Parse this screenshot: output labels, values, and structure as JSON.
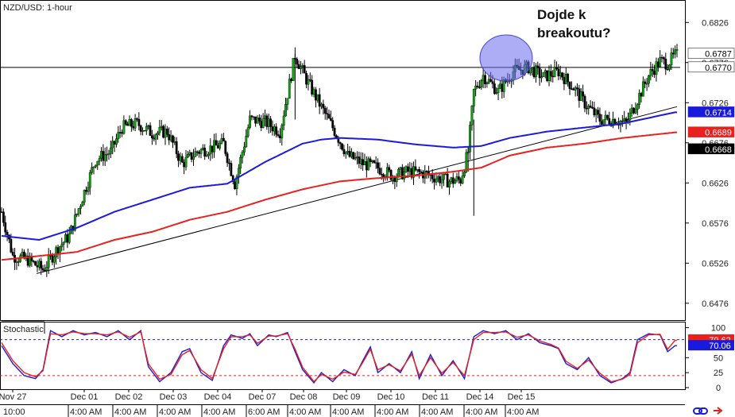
{
  "chart_data": [
    {
      "type": "candlestick",
      "title": "NZD/USD: 1-hour",
      "annotation_lines": [
        "Dojde k",
        "breakoutu?"
      ],
      "ylim": [
        0.6456,
        0.6852
      ],
      "y_ticks": [
        "0.6826",
        "0.6776",
        "0.6726",
        "0.6676",
        "0.6626",
        "0.6576",
        "0.6526",
        "0.6476"
      ],
      "price_tags": [
        {
          "label": "0.6787",
          "value": 0.6787,
          "bg": "#ffffff",
          "fg": "#000000"
        },
        {
          "label": "0.6770",
          "value": 0.677,
          "bg": "#ffffff",
          "fg": "#000000"
        },
        {
          "label": "0.6714",
          "value": 0.6714,
          "bg": "#1a1adc",
          "fg": "#ffffff"
        },
        {
          "label": "0.6689",
          "value": 0.6689,
          "bg": "#e8201e",
          "fg": "#ffffff"
        },
        {
          "label": "0.6668",
          "value": 0.6668,
          "bg": "#000000",
          "fg": "#ffffff"
        }
      ],
      "resistance_level": 0.677,
      "trendline": {
        "from": {
          "date": "Nov 27",
          "value": 0.6513
        },
        "to": {
          "date": "Dec 15+",
          "value": 0.6721
        }
      },
      "x_tick_labels": [
        {
          "date": "Nov 27",
          "time": "10:00"
        },
        {
          "date": "Dec 01",
          "time": "4:00 AM"
        },
        {
          "date": "Dec 02",
          "time": "4:00 AM"
        },
        {
          "date": "Dec 03",
          "time": "4:00 AM"
        },
        {
          "date": "Dec 04",
          "time": "4:00 AM"
        },
        {
          "date": "Dec 07",
          "time": "6:00 AM"
        },
        {
          "date": "Dec 08",
          "time": "4:00 AM"
        },
        {
          "date": "Dec 09",
          "time": "4:00 AM"
        },
        {
          "date": "Dec 10",
          "time": "4:00 AM"
        },
        {
          "date": "Dec 11",
          "time": "4:00 AM"
        },
        {
          "date": "Dec 14",
          "time": "4:00 AM"
        },
        {
          "date": "Dec 15",
          "time": "4:00 AM"
        }
      ],
      "price_path": [
        [
          0,
          0.659
        ],
        [
          6,
          0.6535
        ],
        [
          14,
          0.653
        ],
        [
          22,
          0.6518
        ],
        [
          30,
          0.6545
        ],
        [
          36,
          0.656
        ],
        [
          44,
          0.6615
        ],
        [
          50,
          0.6655
        ],
        [
          58,
          0.6665
        ],
        [
          64,
          0.6695
        ],
        [
          72,
          0.67
        ],
        [
          80,
          0.6688
        ],
        [
          88,
          0.669
        ],
        [
          96,
          0.665
        ],
        [
          104,
          0.6665
        ],
        [
          112,
          0.667
        ],
        [
          118,
          0.6675
        ],
        [
          124,
          0.6625
        ],
        [
          132,
          0.6705
        ],
        [
          140,
          0.6702
        ],
        [
          148,
          0.669
        ],
        [
          156,
          0.6785
        ],
        [
          162,
          0.6755
        ],
        [
          170,
          0.672
        ],
        [
          176,
          0.6695
        ],
        [
          184,
          0.666
        ],
        [
          192,
          0.665
        ],
        [
          200,
          0.6645
        ],
        [
          208,
          0.6635
        ],
        [
          216,
          0.664
        ],
        [
          224,
          0.6638
        ],
        [
          232,
          0.6632
        ],
        [
          238,
          0.6628
        ],
        [
          244,
          0.663
        ],
        [
          248,
          0.6665
        ],
        [
          251,
          0.674
        ],
        [
          256,
          0.676
        ],
        [
          264,
          0.674
        ],
        [
          272,
          0.6765
        ],
        [
          280,
          0.677
        ],
        [
          288,
          0.6758
        ],
        [
          296,
          0.6765
        ],
        [
          304,
          0.6745
        ],
        [
          310,
          0.6725
        ],
        [
          318,
          0.6705
        ],
        [
          326,
          0.6705
        ],
        [
          332,
          0.67
        ],
        [
          338,
          0.673
        ],
        [
          344,
          0.676
        ],
        [
          350,
          0.6778
        ],
        [
          354,
          0.6775
        ],
        [
          358,
          0.6785
        ]
      ],
      "series": [
        {
          "name": "",
          "color": "#1a1adc",
          "values": [
            [
              0,
              0.656
            ],
            [
              20,
              0.6555
            ],
            [
              40,
              0.657
            ],
            [
              60,
              0.659
            ],
            [
              80,
              0.6605
            ],
            [
              100,
              0.662
            ],
            [
              120,
              0.6625
            ],
            [
              140,
              0.6652
            ],
            [
              160,
              0.6675
            ],
            [
              170,
              0.668
            ],
            [
              180,
              0.6682
            ],
            [
              200,
              0.668
            ],
            [
              220,
              0.6674
            ],
            [
              240,
              0.667
            ],
            [
              255,
              0.6672
            ],
            [
              270,
              0.6682
            ],
            [
              290,
              0.669
            ],
            [
              310,
              0.6695
            ],
            [
              330,
              0.67
            ],
            [
              358,
              0.6714
            ]
          ]
        },
        {
          "name": "",
          "color": "#e8201e",
          "values": [
            [
              0,
              0.653
            ],
            [
              20,
              0.6535
            ],
            [
              40,
              0.654
            ],
            [
              60,
              0.6555
            ],
            [
              80,
              0.6565
            ],
            [
              100,
              0.658
            ],
            [
              120,
              0.659
            ],
            [
              140,
              0.6605
            ],
            [
              160,
              0.6618
            ],
            [
              180,
              0.6628
            ],
            [
              200,
              0.6632
            ],
            [
              220,
              0.6635
            ],
            [
              240,
              0.664
            ],
            [
              255,
              0.6645
            ],
            [
              270,
              0.666
            ],
            [
              290,
              0.667
            ],
            [
              310,
              0.6675
            ],
            [
              330,
              0.6682
            ],
            [
              358,
              0.6689
            ]
          ]
        }
      ]
    },
    {
      "type": "line",
      "title": "Stochastic",
      "ylim": [
        0,
        100
      ],
      "y_ticks": [
        "100",
        "50",
        "25",
        "0"
      ],
      "levels": [
        80,
        20
      ],
      "price_tags": [
        {
          "label": "79.62",
          "value": 79.62,
          "bg": "#e8201e",
          "fg": "#ffffff"
        },
        {
          "label": "70.06",
          "value": 70.06,
          "bg": "#1a1adc",
          "fg": "#ffffff"
        }
      ],
      "series": [
        {
          "name": "",
          "color": "#1a1adc",
          "values": [
            [
              0,
              70
            ],
            [
              6,
              40
            ],
            [
              12,
              20
            ],
            [
              18,
              15
            ],
            [
              22,
              30
            ],
            [
              26,
              95
            ],
            [
              32,
              85
            ],
            [
              38,
              95
            ],
            [
              44,
              88
            ],
            [
              50,
              92
            ],
            [
              56,
              85
            ],
            [
              62,
              95
            ],
            [
              68,
              80
            ],
            [
              74,
              95
            ],
            [
              78,
              35
            ],
            [
              84,
              10
            ],
            [
              90,
              25
            ],
            [
              96,
              60
            ],
            [
              100,
              65
            ],
            [
              106,
              25
            ],
            [
              112,
              12
            ],
            [
              118,
              70
            ],
            [
              122,
              88
            ],
            [
              128,
              82
            ],
            [
              132,
              90
            ],
            [
              136,
              70
            ],
            [
              142,
              88
            ],
            [
              146,
              85
            ],
            [
              152,
              92
            ],
            [
              156,
              60
            ],
            [
              160,
              30
            ],
            [
              166,
              8
            ],
            [
              170,
              25
            ],
            [
              176,
              10
            ],
            [
              182,
              30
            ],
            [
              188,
              20
            ],
            [
              192,
              45
            ],
            [
              196,
              68
            ],
            [
              200,
              25
            ],
            [
              206,
              40
            ],
            [
              212,
              25
            ],
            [
              218,
              60
            ],
            [
              222,
              15
            ],
            [
              228,
              55
            ],
            [
              234,
              20
            ],
            [
              240,
              45
            ],
            [
              246,
              15
            ],
            [
              251,
              85
            ],
            [
              256,
              95
            ],
            [
              262,
              90
            ],
            [
              268,
              95
            ],
            [
              274,
              80
            ],
            [
              280,
              90
            ],
            [
              286,
              75
            ],
            [
              292,
              70
            ],
            [
              296,
              65
            ],
            [
              300,
              40
            ],
            [
              306,
              30
            ],
            [
              312,
              50
            ],
            [
              318,
              20
            ],
            [
              324,
              8
            ],
            [
              330,
              15
            ],
            [
              334,
              25
            ],
            [
              338,
              80
            ],
            [
              344,
              90
            ],
            [
              350,
              88
            ],
            [
              354,
              60
            ],
            [
              358,
              70
            ]
          ]
        },
        {
          "name": "",
          "color": "#e8201e",
          "values": [
            [
              0,
              75
            ],
            [
              6,
              45
            ],
            [
              12,
              25
            ],
            [
              18,
              18
            ],
            [
              22,
              28
            ],
            [
              26,
              90
            ],
            [
              32,
              88
            ],
            [
              38,
              93
            ],
            [
              44,
              90
            ],
            [
              50,
              90
            ],
            [
              56,
              88
            ],
            [
              62,
              93
            ],
            [
              68,
              84
            ],
            [
              74,
              93
            ],
            [
              78,
              40
            ],
            [
              84,
              14
            ],
            [
              90,
              22
            ],
            [
              96,
              55
            ],
            [
              100,
              62
            ],
            [
              106,
              30
            ],
            [
              112,
              15
            ],
            [
              118,
              65
            ],
            [
              122,
              85
            ],
            [
              128,
              85
            ],
            [
              132,
              88
            ],
            [
              136,
              74
            ],
            [
              142,
              86
            ],
            [
              146,
              86
            ],
            [
              152,
              90
            ],
            [
              156,
              64
            ],
            [
              160,
              34
            ],
            [
              166,
              10
            ],
            [
              170,
              22
            ],
            [
              176,
              14
            ],
            [
              182,
              26
            ],
            [
              188,
              22
            ],
            [
              192,
              42
            ],
            [
              196,
              64
            ],
            [
              200,
              30
            ],
            [
              206,
              38
            ],
            [
              212,
              28
            ],
            [
              218,
              56
            ],
            [
              222,
              20
            ],
            [
              228,
              50
            ],
            [
              234,
              24
            ],
            [
              240,
              42
            ],
            [
              246,
              20
            ],
            [
              251,
              80
            ],
            [
              256,
              92
            ],
            [
              262,
              92
            ],
            [
              268,
              93
            ],
            [
              274,
              84
            ],
            [
              280,
              88
            ],
            [
              286,
              78
            ],
            [
              292,
              72
            ],
            [
              296,
              66
            ],
            [
              300,
              44
            ],
            [
              306,
              32
            ],
            [
              312,
              46
            ],
            [
              318,
              24
            ],
            [
              324,
              10
            ],
            [
              330,
              14
            ],
            [
              334,
              22
            ],
            [
              338,
              75
            ],
            [
              344,
              88
            ],
            [
              350,
              89
            ],
            [
              354,
              64
            ],
            [
              358,
              79
            ]
          ]
        }
      ]
    }
  ]
}
